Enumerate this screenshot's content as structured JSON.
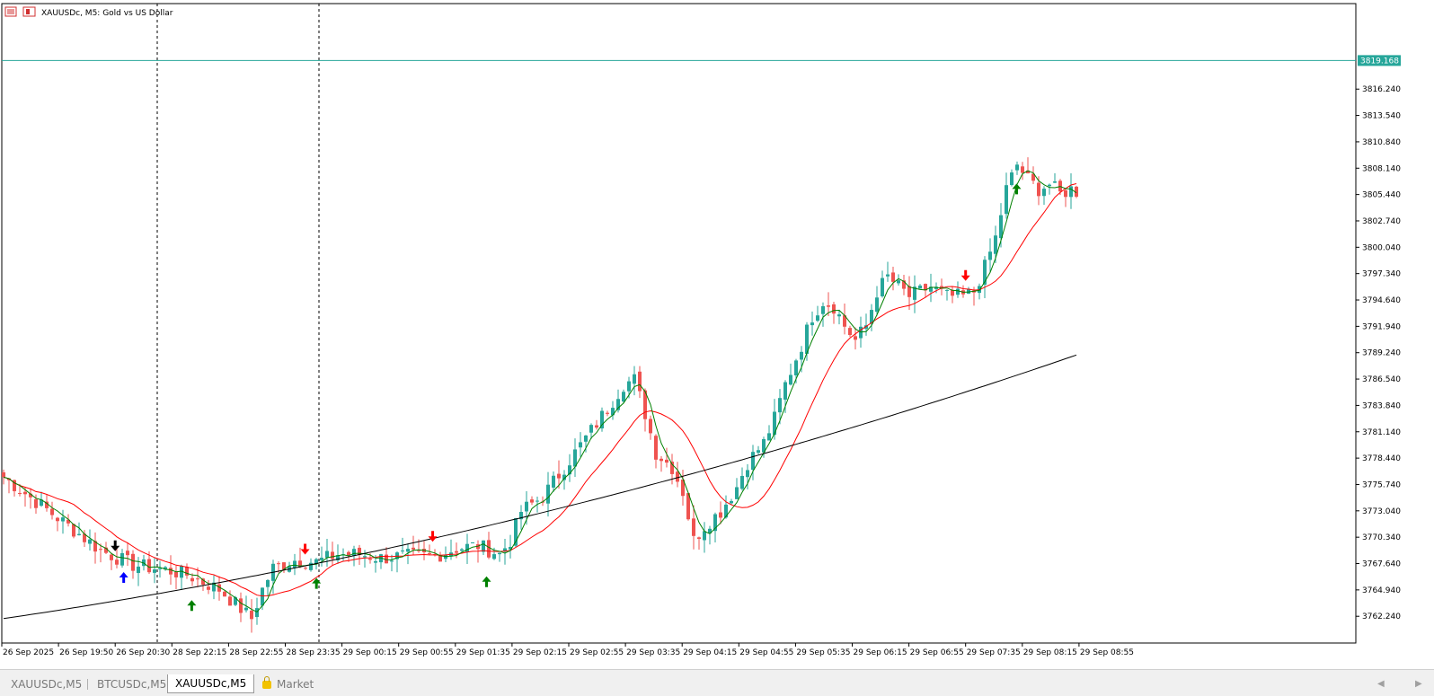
{
  "window": {
    "title": "XAUUSDc, M5:  Gold vs US Dollar"
  },
  "colors": {
    "bull": "#26a69a",
    "bear": "#ef5350",
    "fast_ma": "#008000",
    "mid_ma": "#ff0000",
    "slow_ma": "#000000",
    "price_line": "#26a69a",
    "axis": "#000000",
    "grid": "none"
  },
  "tabs": [
    {
      "label": "XAUUSDc,M5",
      "active": false
    },
    {
      "label": "BTCUSDc,M5",
      "active": false
    },
    {
      "label": "XAUUSDc,M5",
      "active": true
    },
    {
      "label": "Market",
      "active": false,
      "icon": "lock-icon"
    }
  ],
  "chart_data": {
    "type": "candlestick",
    "symbol": "XAUUSDc",
    "timeframe": "M5",
    "current_price": "3819.168",
    "y_ticks": [
      "3816.240",
      "3813.540",
      "3810.840",
      "3808.140",
      "3805.440",
      "3802.740",
      "3800.040",
      "3797.340",
      "3794.640",
      "3791.940",
      "3789.240",
      "3786.540",
      "3783.840",
      "3781.140",
      "3778.440",
      "3775.740",
      "3773.040",
      "3770.340",
      "3767.640",
      "3764.940",
      "3762.240"
    ],
    "ylim": [
      3759.5,
      3825.0
    ],
    "x_ticks": [
      "26 Sep 2025",
      "26 Sep 19:50",
      "26 Sep 20:30",
      "28 Sep 22:15",
      "28 Sep 22:55",
      "28 Sep 23:35",
      "29 Sep 00:15",
      "29 Sep 00:55",
      "29 Sep 01:35",
      "29 Sep 02:15",
      "29 Sep 02:55",
      "29 Sep 03:35",
      "29 Sep 04:15",
      "29 Sep 04:55",
      "29 Sep 05:35",
      "29 Sep 06:15",
      "29 Sep 06:55",
      "29 Sep 07:35",
      "29 Sep 08:15",
      "29 Sep 08:55"
    ],
    "session_breaks_after_tick": [
      2,
      5
    ],
    "candle_count": 200,
    "close_path": [
      [
        0,
        3776.5
      ],
      [
        6,
        3774.0
      ],
      [
        12,
        3771.5
      ],
      [
        18,
        3769.0
      ],
      [
        24,
        3767.5
      ],
      [
        30,
        3767.0
      ],
      [
        34,
        3766.5
      ],
      [
        40,
        3765.0
      ],
      [
        44,
        3763.0
      ],
      [
        46,
        3762.0
      ],
      [
        48,
        3765.0
      ],
      [
        50,
        3767.2
      ],
      [
        54,
        3768.0
      ],
      [
        58,
        3767.8
      ],
      [
        62,
        3768.6
      ],
      [
        66,
        3768.6
      ],
      [
        70,
        3768.2
      ],
      [
        74,
        3768.4
      ],
      [
        80,
        3768.4
      ],
      [
        84,
        3769.2
      ],
      [
        88,
        3769.5
      ],
      [
        92,
        3768.6
      ],
      [
        94,
        3770.0
      ],
      [
        96,
        3773.0
      ],
      [
        100,
        3774.5
      ],
      [
        104,
        3777.5
      ],
      [
        108,
        3780.5
      ],
      [
        112,
        3783.5
      ],
      [
        115,
        3786.0
      ],
      [
        117,
        3786.5
      ],
      [
        119,
        3783.0
      ],
      [
        121,
        3779.0
      ],
      [
        124,
        3777.5
      ],
      [
        126,
        3775.0
      ],
      [
        128,
        3770.0
      ],
      [
        130,
        3771.5
      ],
      [
        133,
        3773.0
      ],
      [
        136,
        3775.5
      ],
      [
        138,
        3778.0
      ],
      [
        141,
        3780.0
      ],
      [
        143,
        3782.5
      ],
      [
        145,
        3786.0
      ],
      [
        148,
        3790.0
      ],
      [
        150,
        3793.0
      ],
      [
        152,
        3794.5
      ],
      [
        154,
        3794.0
      ],
      [
        156,
        3792.0
      ],
      [
        158,
        3790.5
      ],
      [
        160,
        3792.0
      ],
      [
        162,
        3795.5
      ],
      [
        164,
        3797.0
      ],
      [
        166,
        3796.0
      ],
      [
        168,
        3795.0
      ],
      [
        170,
        3795.5
      ],
      [
        172,
        3796.0
      ],
      [
        175,
        3795.0
      ],
      [
        178,
        3795.0
      ],
      [
        180,
        3795.5
      ],
      [
        182,
        3798.0
      ],
      [
        184,
        3801.0
      ],
      [
        186,
        3806.0
      ],
      [
        188,
        3808.5
      ],
      [
        190,
        3807.0
      ],
      [
        192,
        3806.0
      ],
      [
        194,
        3806.5
      ],
      [
        196,
        3805.5
      ],
      [
        198,
        3806.0
      ],
      [
        200,
        3805.5
      ]
    ],
    "overlays": [
      {
        "name": "fast-ma",
        "color": "#008000"
      },
      {
        "name": "mid-ma",
        "color": "#ff0000"
      },
      {
        "name": "slow-ma",
        "color": "#000000"
      }
    ],
    "signals": [
      {
        "tick_index": 2,
        "offset": 0.0,
        "direction": "down",
        "color": "#000000"
      },
      {
        "tick_index": 2,
        "offset": 0.15,
        "direction": "up",
        "color": "#0000ff"
      },
      {
        "tick_index": 3,
        "offset": 0.35,
        "direction": "up",
        "color": "#008000"
      },
      {
        "tick_index": 5,
        "offset": 0.35,
        "direction": "down",
        "color": "#ff0000"
      },
      {
        "tick_index": 5,
        "offset": 0.55,
        "direction": "up",
        "color": "#008000"
      },
      {
        "tick_index": 7,
        "offset": 0.6,
        "direction": "down",
        "color": "#ff0000"
      },
      {
        "tick_index": 8,
        "offset": 0.55,
        "direction": "up",
        "color": "#008000"
      },
      {
        "tick_index": 17,
        "offset": 0.0,
        "direction": "down",
        "color": "#ff0000"
      },
      {
        "tick_index": 17,
        "offset": 0.9,
        "direction": "up",
        "color": "#008000"
      }
    ]
  }
}
